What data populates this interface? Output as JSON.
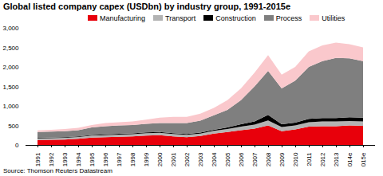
{
  "chart_data": {
    "type": "area",
    "title": "Global listed company capex (USDbn) by industry group, 1991-2015e",
    "source": "Source: Thomson Reuters Datastream",
    "stacked": true,
    "legend": "top",
    "grid": false,
    "categories": [
      "1991",
      "1992",
      "1993",
      "1994",
      "1995",
      "1996",
      "1997",
      "1998",
      "1999",
      "2000",
      "2001",
      "2002",
      "2003",
      "2004",
      "2005",
      "2006",
      "2007",
      "2008",
      "2009",
      "2010",
      "2011",
      "2012",
      "2013",
      "2014e",
      "2015e"
    ],
    "series": [
      {
        "name": "Manufacturing",
        "color": "#e8000b",
        "values": [
          130,
          135,
          140,
          160,
          190,
          200,
          210,
          220,
          240,
          250,
          220,
          200,
          230,
          290,
          330,
          380,
          420,
          500,
          350,
          400,
          470,
          480,
          480,
          500,
          490
        ]
      },
      {
        "name": "Transport",
        "color": "#b3b3b3",
        "values": [
          40,
          40,
          45,
          45,
          50,
          50,
          55,
          55,
          60,
          60,
          60,
          60,
          60,
          70,
          80,
          90,
          100,
          130,
          110,
          100,
          110,
          120,
          120,
          110,
          110
        ]
      },
      {
        "name": "Construction",
        "color": "#000000",
        "values": [
          15,
          15,
          15,
          15,
          15,
          20,
          20,
          20,
          20,
          20,
          20,
          20,
          25,
          30,
          40,
          60,
          80,
          140,
          70,
          70,
          90,
          90,
          90,
          100,
          100
        ]
      },
      {
        "name": "Process",
        "color": "#7f7f7f",
        "values": [
          145,
          150,
          150,
          160,
          195,
          210,
          215,
          215,
          220,
          230,
          260,
          280,
          305,
          370,
          450,
          620,
          900,
          1130,
          920,
          1080,
          1330,
          1460,
          1540,
          1510,
          1450
        ]
      },
      {
        "name": "Utilities",
        "color": "#fac8cc",
        "values": [
          40,
          50,
          60,
          60,
          60,
          80,
          80,
          90,
          110,
          140,
          160,
          160,
          180,
          190,
          250,
          300,
          350,
          400,
          350,
          350,
          400,
          400,
          390,
          360,
          350
        ]
      }
    ],
    "ylim": [
      0,
      3000
    ],
    "yticks": [
      0,
      500,
      1000,
      1500,
      2000,
      2500,
      3000
    ]
  }
}
